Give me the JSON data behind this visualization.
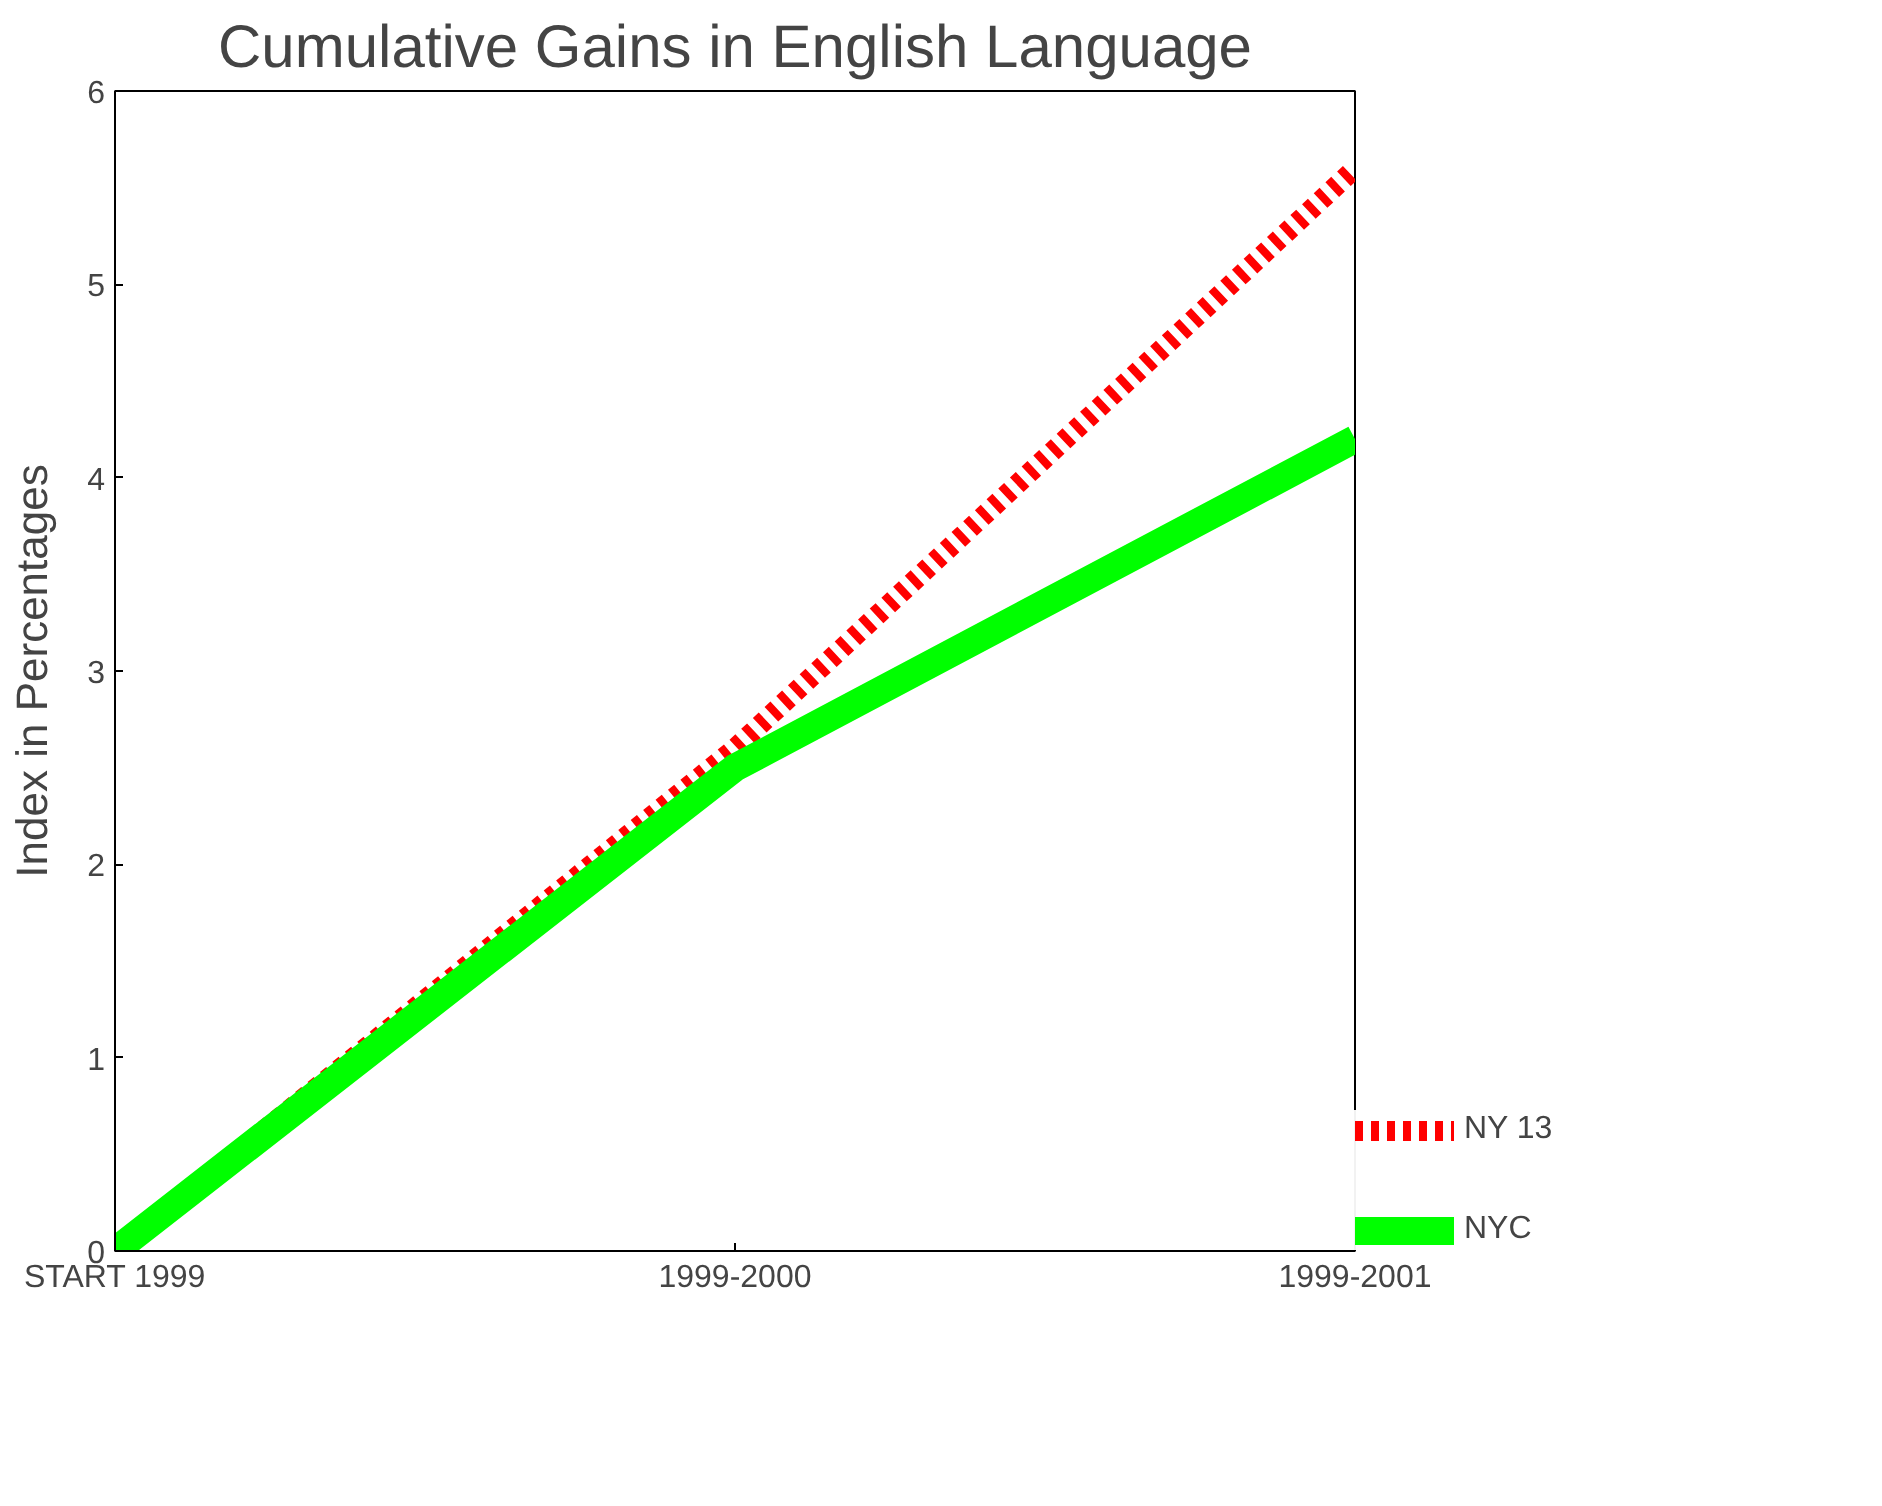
{
  "chart_data": {
    "type": "line",
    "title": "Cumulative Gains in English Language",
    "ylabel": "Index in Percentages",
    "categories": [
      "START 1999",
      "1999-2000",
      "1999-2001"
    ],
    "series": [
      {
        "name": "NY 13",
        "color": "#ff0000",
        "line_style": "dashed",
        "values": [
          0,
          2.6,
          5.6
        ]
      },
      {
        "name": "NYC",
        "color": "#00ff00",
        "line_style": "solid",
        "values": [
          0,
          2.5,
          4.2
        ]
      }
    ],
    "ylim": [
      0,
      6
    ],
    "yticks": [
      0,
      1,
      2,
      3,
      4,
      5,
      6
    ],
    "grid": false,
    "legend": "bottom right"
  }
}
